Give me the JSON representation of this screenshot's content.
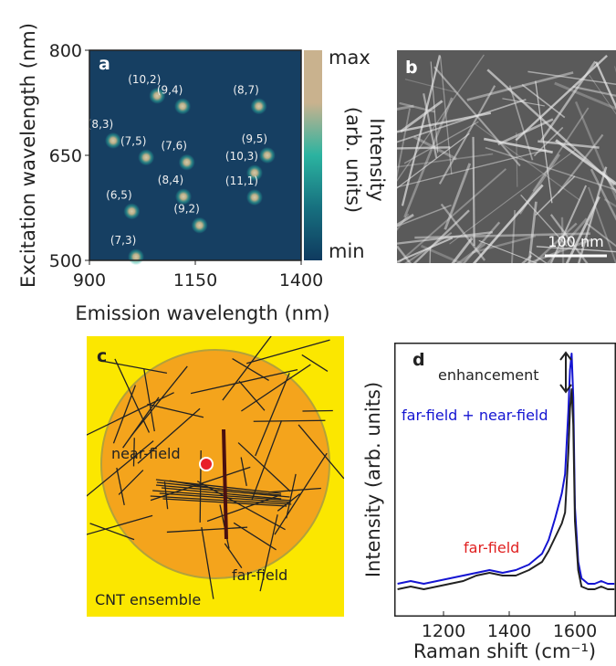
{
  "chart_data": [
    {
      "type": "heatmap",
      "panel_label": "a",
      "xlabel": "Emission wavelength (nm)",
      "ylabel": "Excitation wavelength (nm)",
      "xlim": [
        900,
        1400
      ],
      "xticks": [
        900,
        1150,
        1400
      ],
      "ylim": [
        500,
        800
      ],
      "yticks": [
        500,
        650,
        800
      ],
      "colorbar": {
        "label": "Intensity",
        "label_units": "(arb. units)",
        "max": "max",
        "min": "min",
        "colors": [
          "#0f3a5f",
          "#17707f",
          "#2bb3a0",
          "#c9b28e",
          "#c9b28e"
        ]
      },
      "peaks": [
        {
          "label": "(6,5)",
          "x": 1000,
          "y": 570
        },
        {
          "label": "(7,5)",
          "x": 1034,
          "y": 647
        },
        {
          "label": "(8,4)",
          "x": 1122,
          "y": 591
        },
        {
          "label": "(8,3)",
          "x": 956,
          "y": 671
        },
        {
          "label": "(7,3)",
          "x": 1010,
          "y": 505
        },
        {
          "label": "(10,2)",
          "x": 1060,
          "y": 735
        },
        {
          "label": "(9,4)",
          "x": 1120,
          "y": 720
        },
        {
          "label": "(7,6)",
          "x": 1130,
          "y": 640
        },
        {
          "label": "(9,2)",
          "x": 1160,
          "y": 550
        },
        {
          "label": "(8,7)",
          "x": 1300,
          "y": 720
        },
        {
          "label": "(9,5)",
          "x": 1320,
          "y": 650
        },
        {
          "label": "(10,3)",
          "x": 1290,
          "y": 625
        },
        {
          "label": "(11,1)",
          "x": 1290,
          "y": 590
        }
      ]
    },
    {
      "type": "line",
      "panel_label": "d",
      "xlabel": "Raman shift (cm⁻¹)",
      "ylabel": "Intensity (arb. units)",
      "xlim": [
        1050,
        1725
      ],
      "xticks": [
        1200,
        1400,
        1600
      ],
      "ylim": [
        0,
        100
      ],
      "annotation": "enhancement",
      "x": [
        1060,
        1100,
        1140,
        1180,
        1220,
        1260,
        1300,
        1340,
        1380,
        1420,
        1460,
        1500,
        1520,
        1540,
        1560,
        1570,
        1580,
        1585,
        1590,
        1595,
        1600,
        1610,
        1620,
        1640,
        1660,
        1680,
        1700,
        1720
      ],
      "series": [
        {
          "name": "far-field + near-field",
          "color": "#1414d2",
          "values": [
            12,
            13,
            12,
            13,
            14,
            15,
            16,
            17,
            16,
            17,
            19,
            23,
            28,
            36,
            45,
            52,
            75,
            90,
            96,
            80,
            40,
            20,
            14,
            12,
            12,
            13,
            12,
            12
          ]
        },
        {
          "name": "far-field",
          "color": "#222222",
          "label_color": "#e02020",
          "values": [
            10,
            11,
            10,
            11,
            12,
            13,
            15,
            16,
            15,
            15,
            17,
            20,
            24,
            29,
            34,
            38,
            60,
            76,
            83,
            70,
            35,
            17,
            11,
            10,
            10,
            11,
            10,
            10
          ]
        }
      ]
    }
  ],
  "image_panel": {
    "panel_label": "b",
    "scale_bar": "100 nm"
  },
  "diagram": {
    "panel_label": "c",
    "near_field": "near-field",
    "far_field": "far-field",
    "ensemble": "CNT ensemble"
  }
}
